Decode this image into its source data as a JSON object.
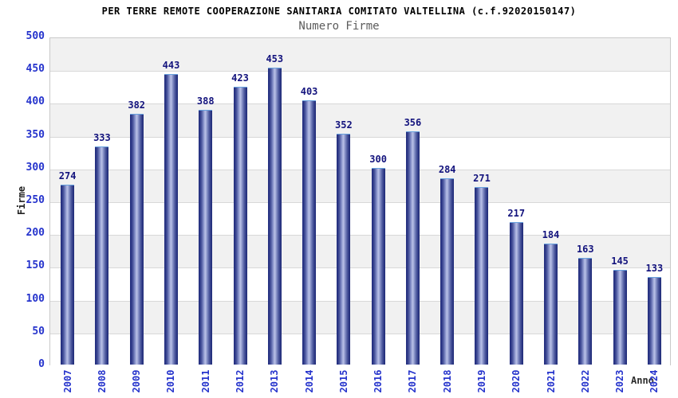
{
  "page": {
    "title": "PER TERRE REMOTE COOPERAZIONE SANITARIA COMITATO VALTELLINA (c.f.92020150147)",
    "subtitle": "Numero Firme"
  },
  "chart_data": {
    "type": "bar",
    "title": "PER TERRE REMOTE COOPERAZIONE SANITARIA COMITATO VALTELLINA (c.f.92020150147)",
    "subtitle": "Numero Firme",
    "categories": [
      "2007",
      "2008",
      "2009",
      "2010",
      "2011",
      "2012",
      "2013",
      "2014",
      "2015",
      "2016",
      "2017",
      "2018",
      "2019",
      "2020",
      "2021",
      "2022",
      "2023",
      "2024"
    ],
    "values": [
      274,
      333,
      382,
      443,
      388,
      423,
      453,
      403,
      352,
      300,
      356,
      284,
      271,
      217,
      184,
      163,
      145,
      133
    ],
    "xlabel": "Anno",
    "ylabel": "Firme",
    "ylim": [
      0,
      500
    ],
    "ytick_step": 50,
    "grid": true,
    "legend": "none",
    "band_colors": [
      "#f1f1f1",
      "#ffffff"
    ],
    "colors": {
      "bar_edge": "#222d7d",
      "bar_center": "#b9c1e8",
      "bar_top_border": "#67a1de",
      "value_label": "#13137d",
      "tick_label": "#2533cc",
      "grid_line": "#d8d8d8",
      "plot_border": "#c9c9c9",
      "title": "#000000",
      "subtitle": "#5c5c5c",
      "axis_title": "#222222"
    }
  }
}
